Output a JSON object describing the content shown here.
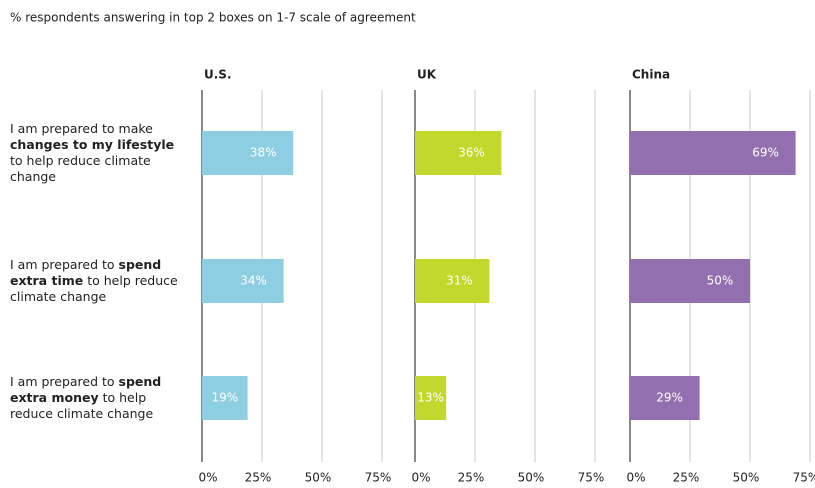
{
  "chart_data": {
    "type": "bar",
    "subtitle": "% respondents answering in top 2 boxes on 1-7 scale of agreement",
    "categories": [
      {
        "segments": [
          {
            "text": "I am prepared to make "
          },
          {
            "text": "changes to my lifestyle",
            "bold": true
          },
          {
            "text": " to help reduce climate change"
          }
        ]
      },
      {
        "segments": [
          {
            "text": "I am prepared to "
          },
          {
            "text": "spend extra time",
            "bold": true
          },
          {
            "text": " to help reduce climate change"
          }
        ]
      },
      {
        "segments": [
          {
            "text": "I am prepared to "
          },
          {
            "text": "spend extra money",
            "bold": true
          },
          {
            "text": " to help reduce climate change"
          }
        ]
      }
    ],
    "series": [
      {
        "name": "U.S.",
        "color": "#8ecee3",
        "values": [
          38,
          34,
          19
        ],
        "value_labels": [
          "38%",
          "34%",
          "19%"
        ]
      },
      {
        "name": "UK",
        "color": "#c3d82c",
        "values": [
          36,
          31,
          13
        ],
        "value_labels": [
          "36%",
          "31%",
          "13%"
        ]
      },
      {
        "name": "China",
        "color": "#936fb0",
        "values": [
          69,
          50,
          29
        ],
        "value_labels": [
          "69%",
          "50%",
          "29%"
        ]
      }
    ],
    "xlim": [
      0,
      75
    ],
    "xticks": [
      {
        "value": 0,
        "label": "0%"
      },
      {
        "value": 25,
        "label": "25%"
      },
      {
        "value": 50,
        "label": "50%"
      },
      {
        "value": 75,
        "label": "75%"
      }
    ],
    "grid": true
  }
}
